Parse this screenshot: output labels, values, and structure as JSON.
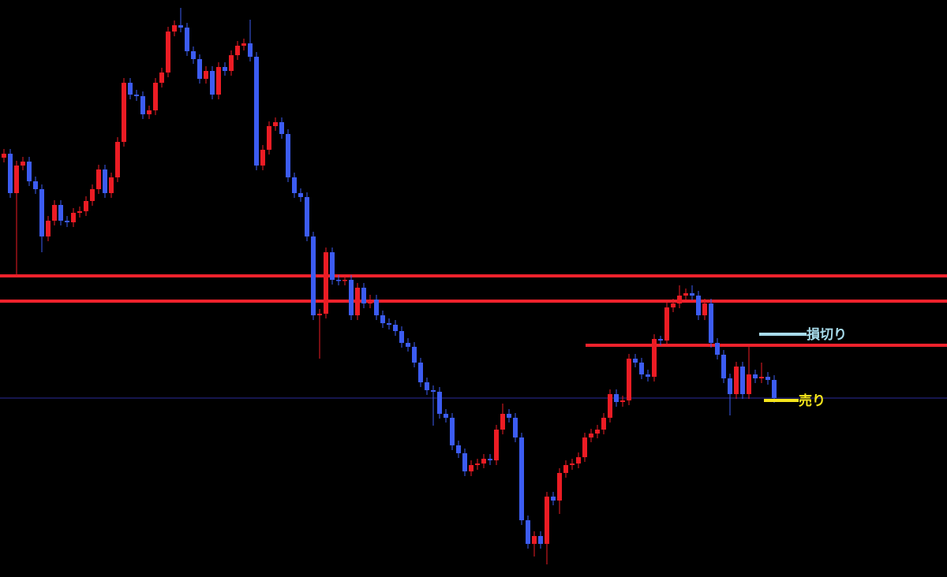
{
  "chart_data": {
    "type": "candlestick",
    "ylim": [
      0,
      732
    ],
    "up_color": "#ec1c24",
    "down_color": "#3c5cf2",
    "background": "#000000",
    "open": [
      532,
      537,
      487,
      522,
      527,
      502,
      492,
      432,
      452,
      472,
      452,
      450,
      462,
      464,
      477,
      492,
      517,
      487,
      507,
      552,
      627,
      612,
      610,
      587,
      592,
      627,
      640,
      692,
      700,
      697,
      667,
      657,
      632,
      642,
      612,
      647,
      642,
      662,
      674,
      677,
      660,
      522,
      542,
      572,
      577,
      562,
      507,
      487,
      482,
      432,
      332,
      334,
      412,
      377,
      376,
      377,
      332,
      367,
      347,
      352,
      332,
      322,
      320,
      312,
      297,
      292,
      272,
      247,
      237,
      235,
      207,
      202,
      167,
      157,
      134,
      142,
      144,
      150,
      148,
      187,
      207,
      202,
      177,
      72,
      42,
      52,
      42,
      102,
      97,
      132,
      142,
      144,
      152,
      177,
      182,
      187,
      202,
      232,
      222,
      224,
      277,
      272,
      257,
      254,
      302,
      300,
      342,
      347,
      357,
      360,
      357,
      332,
      347,
      297,
      282,
      252,
      232,
      267,
      232,
      257,
      252,
      254,
      250
    ],
    "high": [
      543,
      543,
      528,
      533,
      533,
      508,
      498,
      458,
      478,
      478,
      458,
      468,
      470,
      483,
      498,
      523,
      523,
      513,
      558,
      633,
      633,
      618,
      616,
      598,
      633,
      646,
      698,
      706,
      722,
      703,
      673,
      663,
      648,
      648,
      653,
      653,
      668,
      680,
      683,
      707,
      666,
      548,
      578,
      583,
      583,
      568,
      513,
      493,
      488,
      438,
      340,
      418,
      418,
      383,
      383,
      383,
      373,
      373,
      358,
      358,
      338,
      328,
      326,
      318,
      303,
      298,
      278,
      253,
      243,
      241,
      213,
      208,
      173,
      163,
      148,
      150,
      156,
      156,
      193,
      220,
      213,
      208,
      183,
      78,
      58,
      58,
      108,
      108,
      138,
      148,
      150,
      158,
      183,
      188,
      193,
      208,
      238,
      238,
      230,
      283,
      283,
      278,
      263,
      308,
      306,
      348,
      353,
      370,
      366,
      370,
      363,
      353,
      353,
      303,
      288,
      258,
      273,
      273,
      293,
      263,
      272,
      260,
      256
    ],
    "low": [
      526,
      481,
      382,
      516,
      496,
      486,
      412,
      426,
      446,
      446,
      444,
      444,
      456,
      458,
      471,
      486,
      481,
      481,
      501,
      546,
      606,
      604,
      581,
      581,
      586,
      621,
      634,
      686,
      691,
      661,
      651,
      626,
      626,
      606,
      606,
      636,
      636,
      656,
      668,
      654,
      516,
      516,
      536,
      566,
      556,
      501,
      481,
      476,
      426,
      326,
      277,
      328,
      371,
      370,
      370,
      326,
      326,
      341,
      341,
      326,
      316,
      314,
      306,
      291,
      286,
      266,
      241,
      231,
      192,
      201,
      196,
      161,
      151,
      128,
      128,
      136,
      138,
      142,
      142,
      181,
      196,
      171,
      66,
      36,
      26,
      36,
      16,
      91,
      80,
      126,
      136,
      138,
      146,
      171,
      176,
      181,
      196,
      216,
      216,
      218,
      266,
      251,
      248,
      248,
      294,
      294,
      336,
      341,
      351,
      351,
      326,
      326,
      291,
      276,
      246,
      205,
      226,
      226,
      226,
      246,
      246,
      244,
      221
    ],
    "close": [
      537,
      487,
      522,
      527,
      502,
      492,
      432,
      452,
      472,
      452,
      450,
      462,
      464,
      477,
      492,
      517,
      487,
      507,
      552,
      627,
      612,
      610,
      587,
      592,
      627,
      640,
      692,
      700,
      697,
      667,
      657,
      632,
      642,
      612,
      647,
      642,
      662,
      674,
      677,
      660,
      522,
      542,
      572,
      577,
      562,
      507,
      487,
      482,
      432,
      332,
      334,
      412,
      377,
      376,
      377,
      332,
      367,
      347,
      352,
      332,
      322,
      320,
      312,
      297,
      292,
      272,
      247,
      237,
      235,
      207,
      202,
      167,
      157,
      134,
      142,
      144,
      150,
      148,
      187,
      207,
      202,
      177,
      72,
      42,
      52,
      42,
      102,
      97,
      132,
      142,
      144,
      152,
      177,
      182,
      187,
      202,
      232,
      222,
      224,
      277,
      272,
      257,
      254,
      302,
      300,
      342,
      347,
      357,
      360,
      357,
      332,
      347,
      297,
      282,
      252,
      232,
      267,
      232,
      257,
      252,
      254,
      250,
      227
    ],
    "levels": [
      {
        "value": 382,
        "color": "#f0222c"
      },
      {
        "value": 350,
        "color": "#f0222c"
      },
      {
        "value": 294,
        "color": "#f0222c"
      },
      {
        "value": 227,
        "color": "#2c2c9c"
      }
    ],
    "annotations": [
      {
        "text": "損切り",
        "value": 308,
        "color": "#a8dcec"
      },
      {
        "text": "売り",
        "value": 224,
        "color": "#f6e61c"
      }
    ]
  }
}
